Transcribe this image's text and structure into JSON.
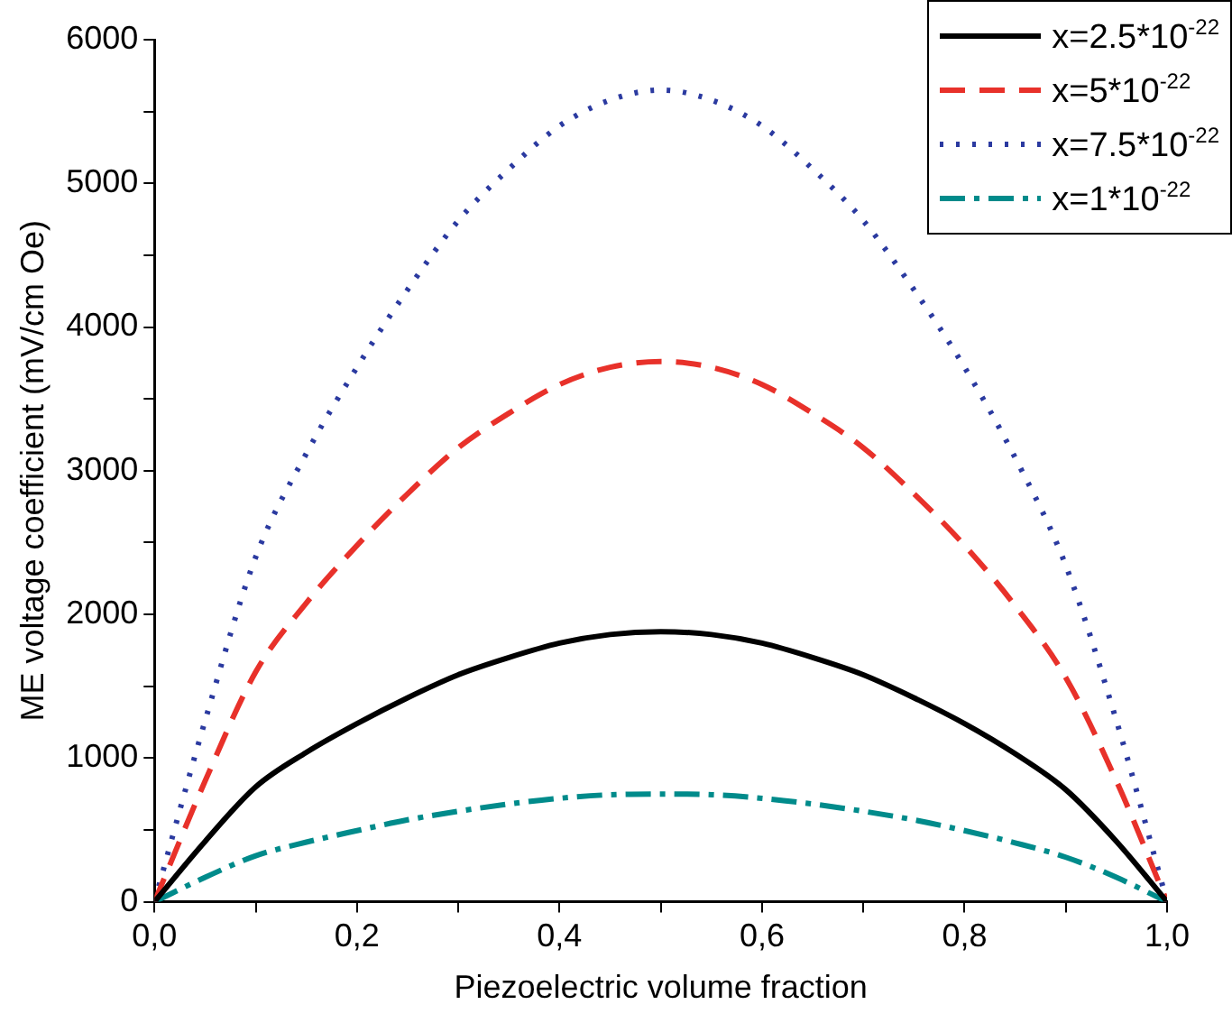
{
  "chart_data": {
    "type": "line",
    "xlabel": "Piezoelectric volume fraction",
    "ylabel": "ME voltage coefficient (mV/cm Oe)",
    "x": [
      0,
      0.05,
      0.1,
      0.15,
      0.2,
      0.25,
      0.3,
      0.35,
      0.4,
      0.45,
      0.5,
      0.55,
      0.6,
      0.65,
      0.7,
      0.75,
      0.8,
      0.85,
      0.9,
      0.95,
      1.0
    ],
    "series": [
      {
        "name": "x=2.5*10$^{-22}$",
        "color": "#000000",
        "line_style": "solid",
        "values": [
          0,
          420,
          800,
          1040,
          1240,
          1420,
          1580,
          1700,
          1800,
          1860,
          1880,
          1860,
          1800,
          1700,
          1580,
          1420,
          1240,
          1030,
          780,
          420,
          0
        ]
      },
      {
        "name": "x=5*10$^{-22}$",
        "color": "#e8312a",
        "line_style": "dashed",
        "values": [
          0,
          840,
          1600,
          2080,
          2480,
          2840,
          3160,
          3400,
          3600,
          3720,
          3760,
          3720,
          3600,
          3400,
          3160,
          2840,
          2480,
          2060,
          1560,
          840,
          0
        ]
      },
      {
        "name": "x=7.5*10$^{-22}$",
        "color": "#2b3aa0",
        "line_style": "dotted",
        "values": [
          0,
          1260,
          2400,
          3120,
          3720,
          4260,
          4740,
          5100,
          5400,
          5580,
          5650,
          5580,
          5400,
          5100,
          4740,
          4260,
          3720,
          3090,
          2340,
          1260,
          0
        ]
      },
      {
        "name": "x=1*10$^{-22}$",
        "color": "#008b8b",
        "line_style": "dashdot",
        "values": [
          0,
          170,
          320,
          415,
          495,
          570,
          630,
          680,
          720,
          745,
          750,
          745,
          720,
          680,
          630,
          570,
          495,
          410,
          310,
          170,
          0
        ]
      }
    ],
    "xlim": [
      0,
      1
    ],
    "xticks": [
      {
        "value": 0,
        "label": "0,0"
      },
      {
        "value": 0.1,
        "label": null
      },
      {
        "value": 0.2,
        "label": "0,2"
      },
      {
        "value": 0.3,
        "label": null
      },
      {
        "value": 0.4,
        "label": "0,4"
      },
      {
        "value": 0.5,
        "label": null
      },
      {
        "value": 0.6,
        "label": "0,6"
      },
      {
        "value": 0.7,
        "label": null
      },
      {
        "value": 0.8,
        "label": "0,8"
      },
      {
        "value": 0.9,
        "label": null
      },
      {
        "value": 1.0,
        "label": "1,0"
      }
    ],
    "ylim": [
      0,
      6000
    ],
    "yticks": [
      0,
      {
        "value": 500,
        "label": null
      },
      1000,
      {
        "value": 1500,
        "label": null
      },
      2000,
      {
        "value": 2500,
        "label": null
      },
      3000,
      {
        "value": 3500,
        "label": null
      },
      4000,
      {
        "value": 4500,
        "label": null
      },
      5000,
      {
        "value": 5500,
        "label": null
      },
      6000
    ],
    "grid": false,
    "legend": "top right",
    "marker": "none"
  }
}
